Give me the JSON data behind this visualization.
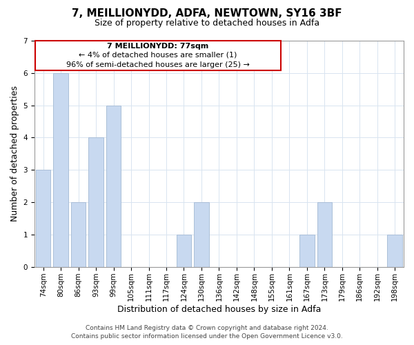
{
  "title": "7, MEILLIONYDD, ADFA, NEWTOWN, SY16 3BF",
  "subtitle": "Size of property relative to detached houses in Adfa",
  "xlabel": "Distribution of detached houses by size in Adfa",
  "ylabel": "Number of detached properties",
  "categories": [
    "74sqm",
    "80sqm",
    "86sqm",
    "93sqm",
    "99sqm",
    "105sqm",
    "111sqm",
    "117sqm",
    "124sqm",
    "130sqm",
    "136sqm",
    "142sqm",
    "148sqm",
    "155sqm",
    "161sqm",
    "167sqm",
    "173sqm",
    "179sqm",
    "186sqm",
    "192sqm",
    "198sqm"
  ],
  "values": [
    3,
    6,
    2,
    4,
    5,
    0,
    0,
    0,
    1,
    2,
    0,
    0,
    0,
    0,
    0,
    1,
    2,
    0,
    0,
    0,
    1
  ],
  "bar_color": "#c8d9f0",
  "bar_edge_color": "#aabfd8",
  "ylim": [
    0,
    7
  ],
  "yticks": [
    0,
    1,
    2,
    3,
    4,
    5,
    6,
    7
  ],
  "annotation_text_line1": "7 MEILLIONYDD: 77sqm",
  "annotation_text_line2": "← 4% of detached houses are smaller (1)",
  "annotation_text_line3": "96% of semi-detached houses are larger (25) →",
  "annotation_box_color": "#ffffff",
  "annotation_box_edge_color": "#cc0000",
  "footer_line1": "Contains HM Land Registry data © Crown copyright and database right 2024.",
  "footer_line2": "Contains public sector information licensed under the Open Government Licence v3.0.",
  "background_color": "#ffffff",
  "grid_color": "#d8e4f0",
  "title_fontsize": 11,
  "subtitle_fontsize": 9,
  "axis_label_fontsize": 9,
  "tick_fontsize": 7.5,
  "annotation_fontsize": 8,
  "footer_fontsize": 6.5
}
